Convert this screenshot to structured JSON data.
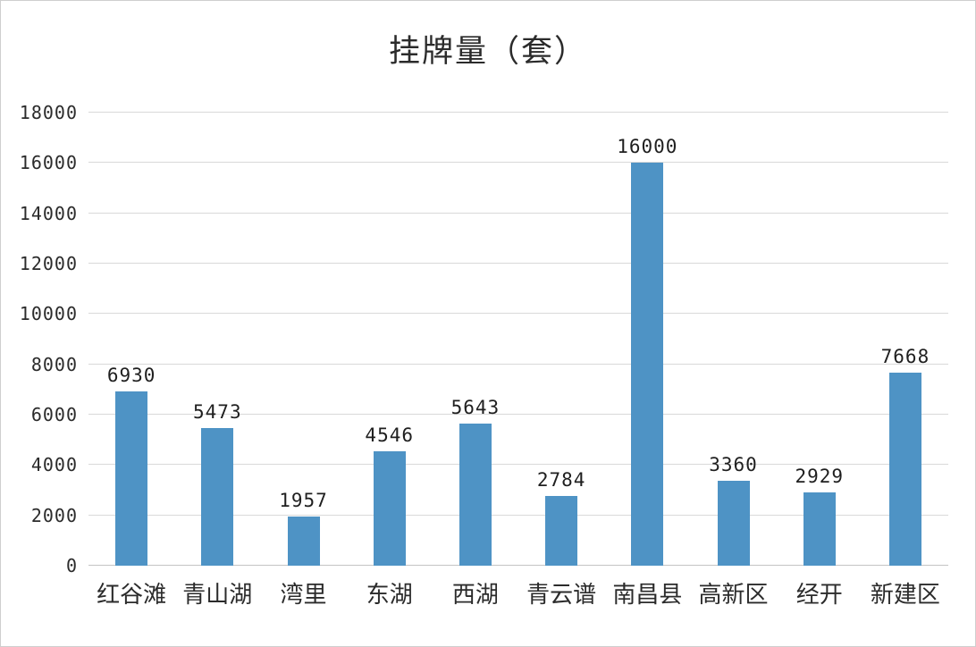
{
  "colors": {
    "bar": "#4E93C5",
    "grid": "#d9d9d9",
    "text": "#2b2b2b"
  },
  "chart_data": {
    "type": "bar",
    "title": "挂牌量（套）",
    "xlabel": "",
    "ylabel": "",
    "categories": [
      "红谷滩",
      "青山湖",
      "湾里",
      "东湖",
      "西湖",
      "青云谱",
      "南昌县",
      "高新区",
      "经开",
      "新建区"
    ],
    "values": [
      6930,
      5473,
      1957,
      4546,
      5643,
      2784,
      16000,
      3360,
      2929,
      7668
    ],
    "ylim": [
      0,
      18000
    ],
    "ytick_step": 2000,
    "grid": true,
    "legend_position": "none"
  }
}
